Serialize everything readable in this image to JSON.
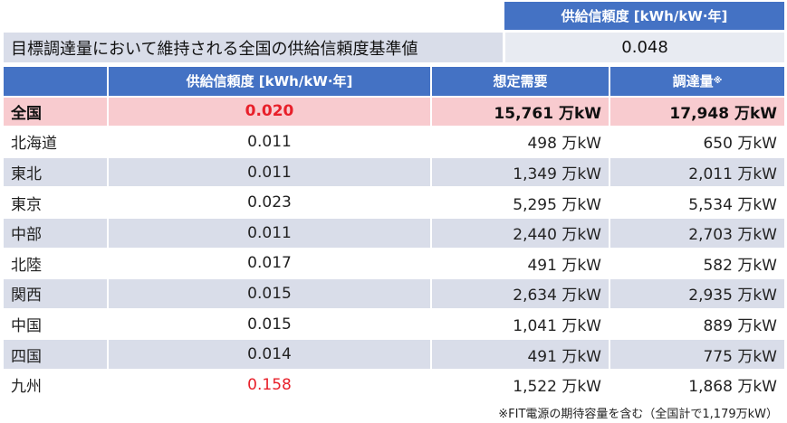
{
  "top": {
    "header": "供給信頼度 [kWh/kW·年]",
    "label": "目標調達量において維持される全国の供給信頼度基準値",
    "value": "0.048"
  },
  "table": {
    "headers": [
      "",
      "供給信頼度 [kWh/kW·年]",
      "想定需要",
      "調達量"
    ],
    "header_mark": "※",
    "rows": [
      {
        "region": "全国",
        "reliability": "0.020",
        "demand": "15,761 万kW",
        "procurement": "17,948 万kW"
      },
      {
        "region": "北海道",
        "reliability": "0.011",
        "demand": "498 万kW",
        "procurement": "650 万kW"
      },
      {
        "region": "東北",
        "reliability": "0.011",
        "demand": "1,349 万kW",
        "procurement": "2,011 万kW"
      },
      {
        "region": "東京",
        "reliability": "0.023",
        "demand": "5,295 万kW",
        "procurement": "5,534 万kW"
      },
      {
        "region": "中部",
        "reliability": "0.011",
        "demand": "2,440 万kW",
        "procurement": "2,703 万kW"
      },
      {
        "region": "北陸",
        "reliability": "0.017",
        "demand": "491 万kW",
        "procurement": "582 万kW"
      },
      {
        "region": "関西",
        "reliability": "0.015",
        "demand": "2,634 万kW",
        "procurement": "2,935 万kW"
      },
      {
        "region": "中国",
        "reliability": "0.015",
        "demand": "1,041 万kW",
        "procurement": "889 万kW"
      },
      {
        "region": "四国",
        "reliability": "0.014",
        "demand": "491 万kW",
        "procurement": "775 万kW"
      },
      {
        "region": "九州",
        "reliability": "0.158",
        "demand": "1,522 万kW",
        "procurement": "1,868 万kW"
      }
    ]
  },
  "footnote": "※FIT電源の期待容量を含む（全国計で1,179万kW）",
  "colors": {
    "header": "#4472c4",
    "highlight": "#f8cbcf",
    "stripe": "#d9dde9",
    "alert": "#e8202a"
  }
}
